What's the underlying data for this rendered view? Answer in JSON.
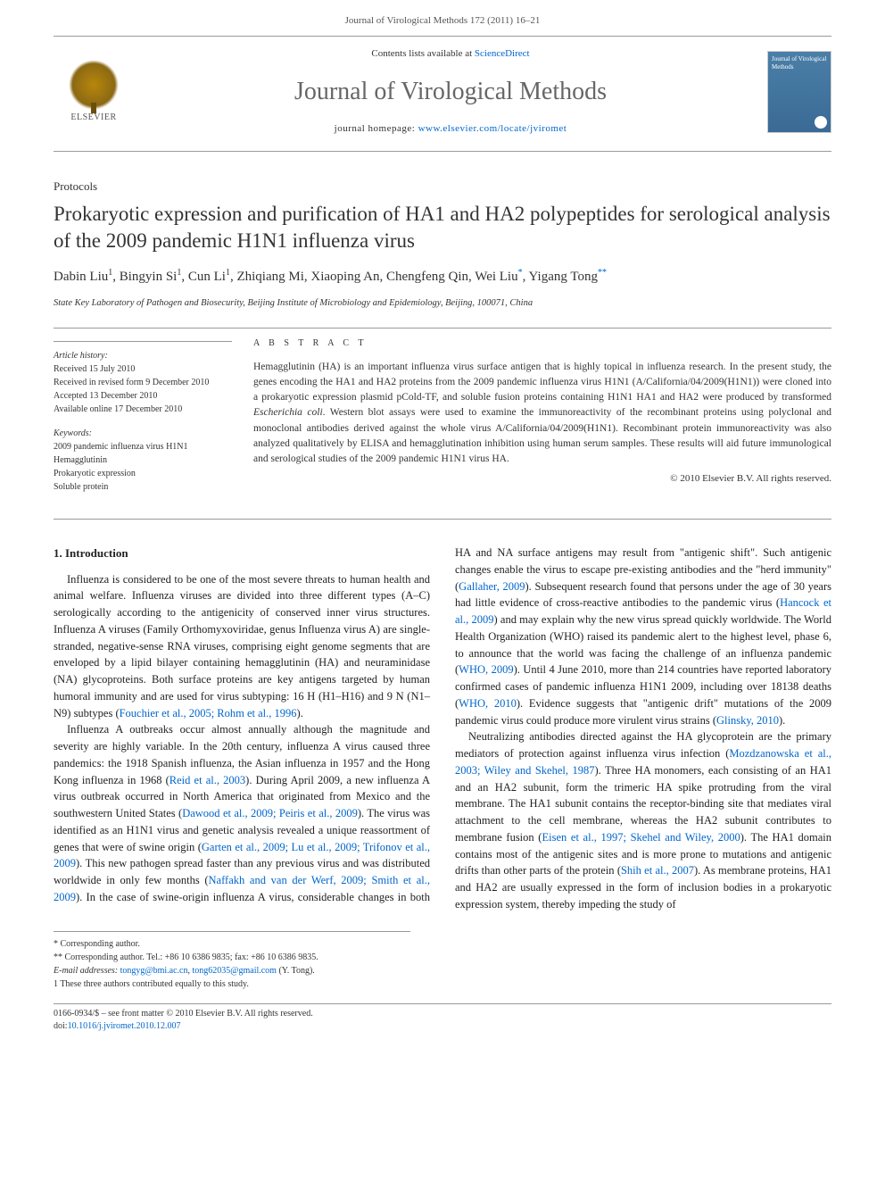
{
  "header": {
    "running_head": "Journal of Virological Methods 172 (2011) 16–21"
  },
  "masthead": {
    "publisher_label": "ELSEVIER",
    "contents_prefix": "Contents lists available at ",
    "contents_link": "ScienceDirect",
    "journal_name": "Journal of Virological Methods",
    "homepage_prefix": "journal homepage: ",
    "homepage_url": "www.elsevier.com/locate/jviromet",
    "cover_text": "Journal of Virological Methods"
  },
  "article": {
    "type": "Protocols",
    "title": "Prokaryotic expression and purification of HA1 and HA2 polypeptides for serological analysis of the 2009 pandemic H1N1 influenza virus",
    "authors_html": "Dabin Liu<sup>1</sup>, Bingyin Si<sup>1</sup>, Cun Li<sup>1</sup>, Zhiqiang Mi, Xiaoping An, Chengfeng Qin, Wei Liu<sup><a href=\"#\">*</a></sup>, Yigang Tong<sup><a href=\"#\">**</a></sup>",
    "affiliation": "State Key Laboratory of Pathogen and Biosecurity, Beijing Institute of Microbiology and Epidemiology, Beijing, 100071, China"
  },
  "meta": {
    "history_heading": "Article history:",
    "history": [
      "Received 15 July 2010",
      "Received in revised form 9 December 2010",
      "Accepted 13 December 2010",
      "Available online 17 December 2010"
    ],
    "keywords_heading": "Keywords:",
    "keywords": [
      "2009 pandemic influenza virus H1N1",
      "Hemagglutinin",
      "Prokaryotic expression",
      "Soluble protein"
    ]
  },
  "abstract": {
    "heading": "A B S T R A C T",
    "text": "Hemagglutinin (HA) is an important influenza virus surface antigen that is highly topical in influenza research. In the present study, the genes encoding the HA1 and HA2 proteins from the 2009 pandemic influenza virus H1N1 (A/California/04/2009(H1N1)) were cloned into a prokaryotic expression plasmid pCold-TF, and soluble fusion proteins containing H1N1 HA1 and HA2 were produced by transformed Escherichia coli. Western blot assays were used to examine the immunoreactivity of the recombinant proteins using polyclonal and monoclonal antibodies derived against the whole virus A/California/04/2009(H1N1). Recombinant protein immunoreactivity was also analyzed qualitatively by ELISA and hemagglutination inhibition using human serum samples. These results will aid future immunological and serological studies of the 2009 pandemic H1N1 virus HA.",
    "copyright": "© 2010 Elsevier B.V. All rights reserved."
  },
  "body": {
    "section_heading": "1. Introduction",
    "para1": "Influenza is considered to be one of the most severe threats to human health and animal welfare. Influenza viruses are divided into three different types (A–C) serologically according to the antigenicity of conserved inner virus structures. Influenza A viruses (Family Orthomyxoviridae, genus Influenza virus A) are single-stranded, negative-sense RNA viruses, comprising eight genome segments that are enveloped by a lipid bilayer containing hemagglutinin (HA) and neuraminidase (NA) glycoproteins. Both surface proteins are key antigens targeted by human humoral immunity and are used for virus subtyping: 16 H (H1–H16) and 9 N (N1–N9) subtypes (",
    "ref1": "Fouchier et al., 2005; Rohm et al., 1996",
    "para1_end": ").",
    "para2": "Influenza A outbreaks occur almost annually although the magnitude and severity are highly variable. In the 20th century, influenza A virus caused three pandemics: the 1918 Spanish influenza, the Asian influenza in 1957 and the Hong Kong influenza in 1968 (",
    "ref2": "Reid et al., 2003",
    "para2_mid": "). During April 2009, a new influenza A virus outbreak occurred in North America that originated from Mexico and the southwestern United States (",
    "ref3": "Dawood et al., 2009; Peiris et al., 2009",
    "para2_mid2": "). The virus was identified as an H1N1 virus and genetic analysis revealed a unique reassortment of genes that were of swine origin (",
    "ref4": "Garten et al., 2009; Lu et al., 2009; Trifonov et al., 2009",
    "para2_end": "). This new pathogen spread faster than any previous virus ",
    "para3_start": "and was distributed worldwide in only few months (",
    "ref5": "Naffakh and van der Werf, 2009; Smith et al., 2009",
    "para3_a": "). In the case of swine-origin influenza A virus, considerable changes in both HA and NA surface antigens may result from \"antigenic shift\". Such antigenic changes enable the virus to escape pre-existing antibodies and the \"herd immunity\" (",
    "ref6": "Gallaher, 2009",
    "para3_b": "). Subsequent research found that persons under the age of 30 years had little evidence of cross-reactive antibodies to the pandemic virus (",
    "ref7": "Hancock et al., 2009",
    "para3_c": ") and may explain why the new virus spread quickly worldwide. The World Health Organization (WHO) raised its pandemic alert to the highest level, phase 6, to announce that the world was facing the challenge of an influenza pandemic (",
    "ref8": "WHO, 2009",
    "para3_d": "). Until 4 June 2010, more than 214 countries have reported laboratory confirmed cases of pandemic influenza H1N1 2009, including over 18138 deaths (",
    "ref9": "WHO, 2010",
    "para3_e": "). Evidence suggests that \"antigenic drift\" mutations of the 2009 pandemic virus could produce more virulent virus strains (",
    "ref10": "Glinsky, 2010",
    "para3_end": ").",
    "para4_a": "Neutralizing antibodies directed against the HA glycoprotein are the primary mediators of protection against influenza virus infection (",
    "ref11": "Mozdzanowska et al., 2003; Wiley and Skehel, 1987",
    "para4_b": "). Three HA monomers, each consisting of an HA1 and an HA2 subunit, form the trimeric HA spike protruding from the viral membrane. The HA1 subunit contains the receptor-binding site that mediates viral attachment to the cell membrane, whereas the HA2 subunit contributes to membrane fusion (",
    "ref12": "Eisen et al., 1997; Skehel and Wiley, 2000",
    "para4_c": "). The HA1 domain contains most of the antigenic sites and is more prone to mutations and antigenic drifts than other parts of the protein (",
    "ref13": "Shih et al., 2007",
    "para4_d": "). As membrane proteins, HA1 and HA2 are usually expressed in the form of inclusion bodies in a prokaryotic expression system, thereby impeding the study of"
  },
  "footnotes": {
    "corr1": "* Corresponding author.",
    "corr2": "** Corresponding author. Tel.: +86 10 6386 9835; fax: +86 10 6386 9835.",
    "email_label": "E-mail addresses: ",
    "email1": "tongyg@bmi.ac.cn",
    "email_sep": ", ",
    "email2": "tong62035@gmail.com",
    "email_suffix": " (Y. Tong).",
    "note1": "1 These three authors contributed equally to this study."
  },
  "footer": {
    "left1": "0166-0934/$ – see front matter © 2010 Elsevier B.V. All rights reserved.",
    "doi_label": "doi:",
    "doi": "10.1016/j.jviromet.2010.12.007"
  }
}
